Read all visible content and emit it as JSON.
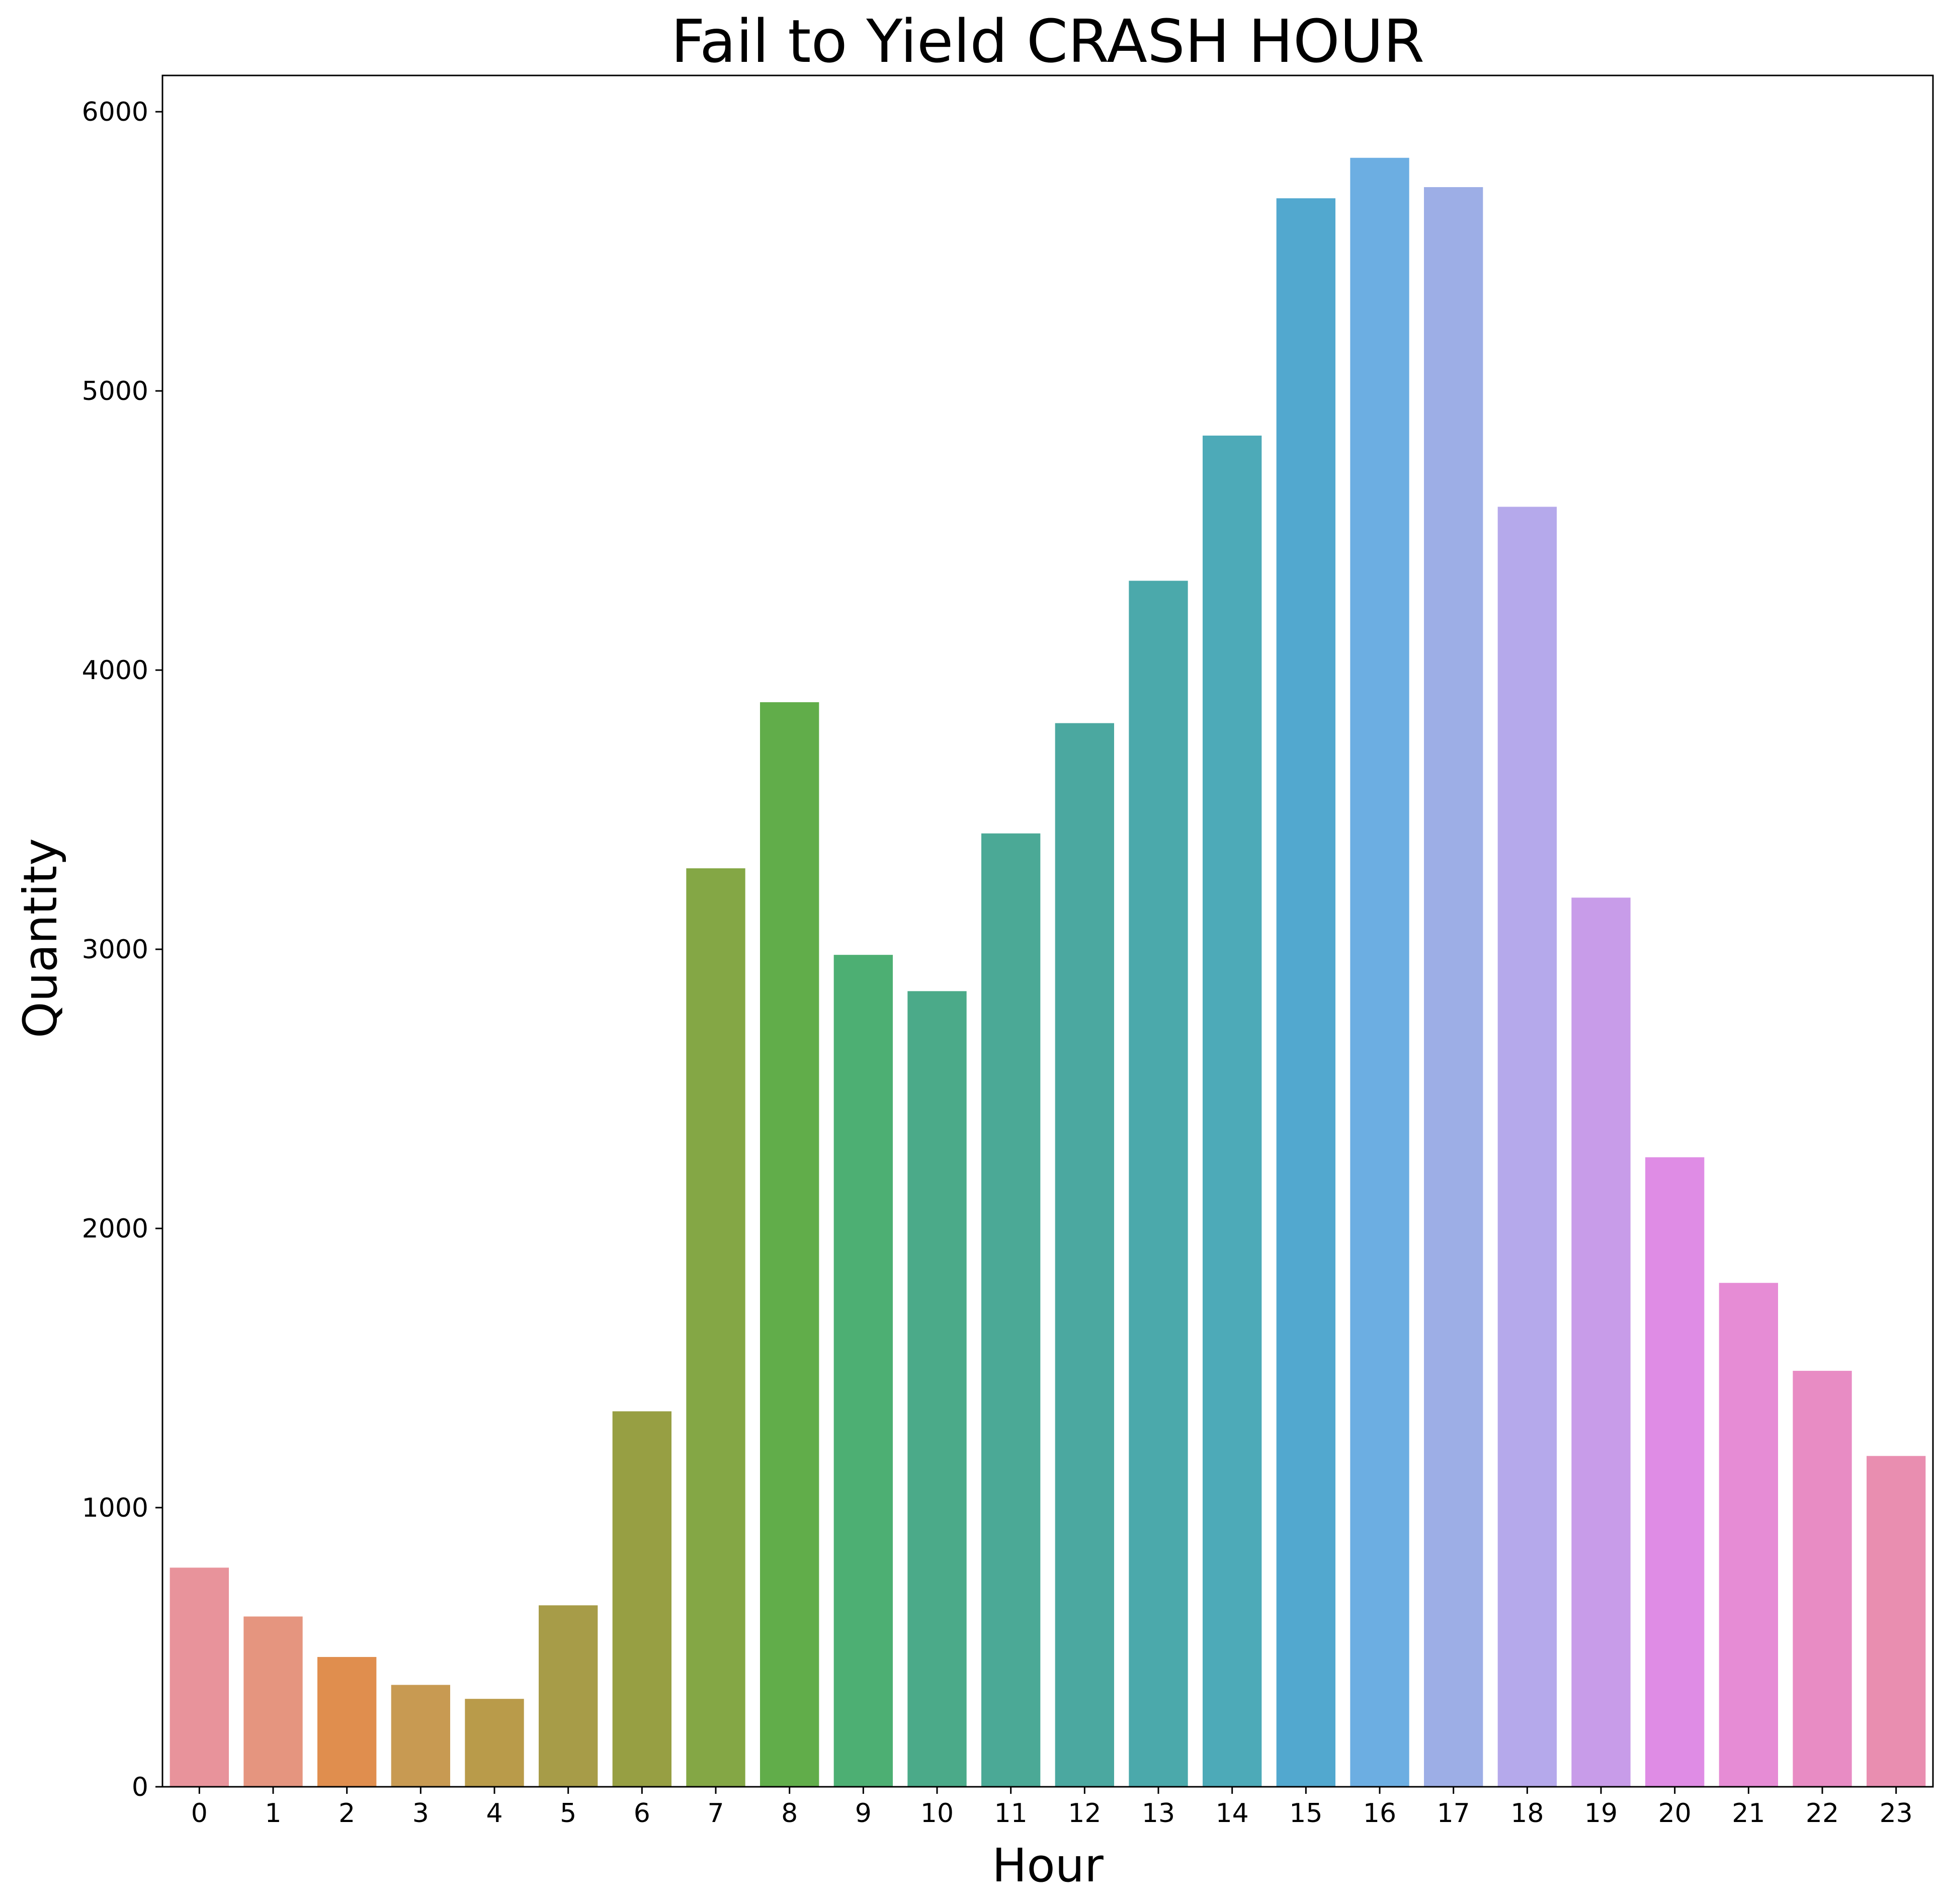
{
  "chart_data": {
    "type": "bar",
    "title": "Fail to Yield CRASH HOUR",
    "xlabel": "Hour",
    "ylabel": "Quantity",
    "categories": [
      "0",
      "1",
      "2",
      "3",
      "4",
      "5",
      "6",
      "7",
      "8",
      "9",
      "10",
      "11",
      "12",
      "13",
      "14",
      "15",
      "16",
      "17",
      "18",
      "19",
      "20",
      "21",
      "22",
      "23"
    ],
    "values": [
      785,
      610,
      465,
      365,
      315,
      650,
      1345,
      3290,
      3885,
      2980,
      2850,
      3415,
      3810,
      4320,
      4840,
      5690,
      5835,
      5730,
      4585,
      3185,
      2255,
      1805,
      1490,
      1185
    ],
    "ylim": [
      0,
      6130
    ],
    "yticks": [
      0,
      1000,
      2000,
      3000,
      4000,
      5000,
      6000
    ],
    "grid": false,
    "legend": "none",
    "colors": [
      "#e8939b",
      "#e5957f",
      "#e08e4e",
      "#c89a52",
      "#b99b4a",
      "#a79c48",
      "#979f43",
      "#84a745",
      "#61ad4a",
      "#4daf73",
      "#4baa89",
      "#4ba996",
      "#4ba8a0",
      "#4ba9ab",
      "#4daab8",
      "#52a8cf",
      "#6caee2",
      "#9daee6",
      "#b5a9eb",
      "#c89ce9",
      "#df8ce5",
      "#e68cd5",
      "#e88cc4",
      "#e98eb0"
    ]
  }
}
